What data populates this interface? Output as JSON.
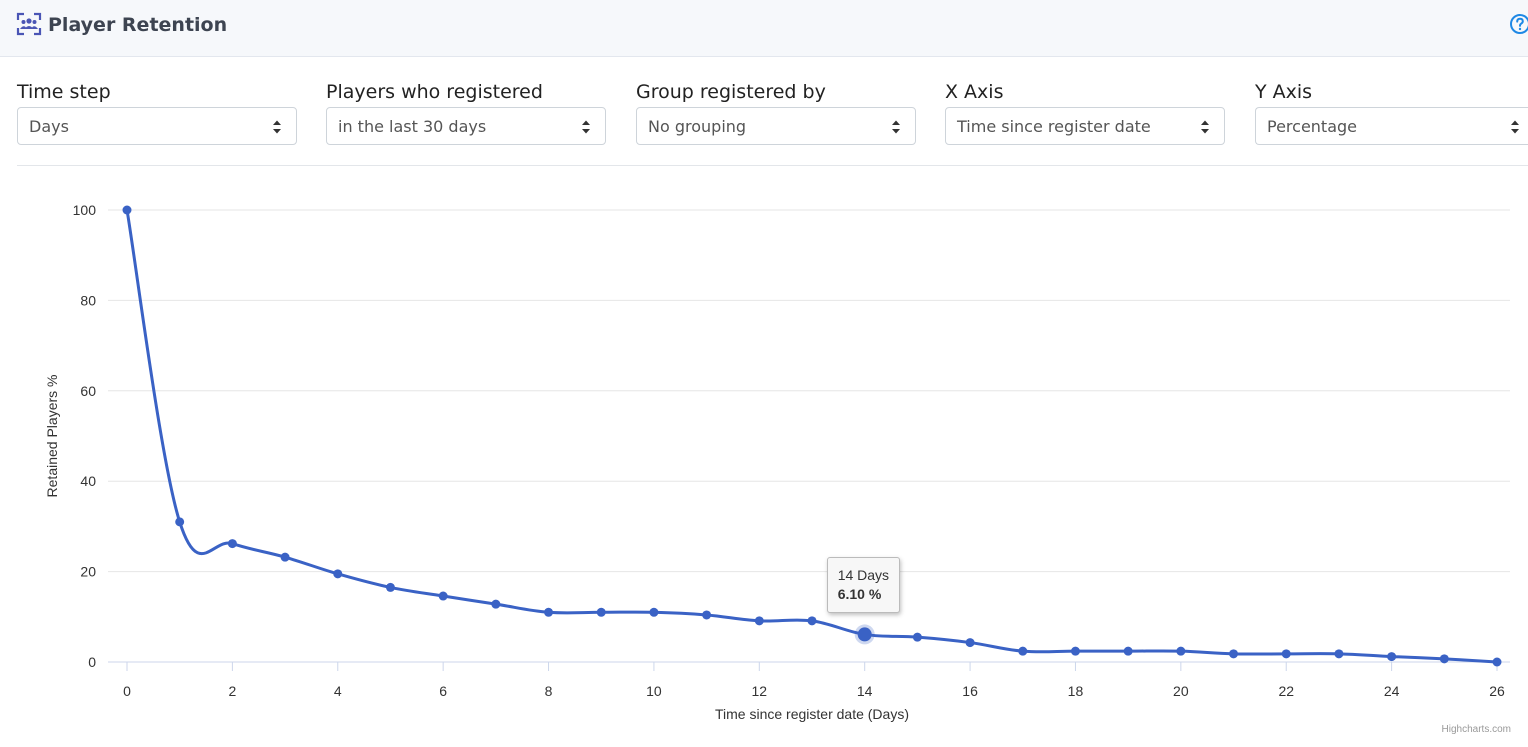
{
  "header": {
    "title": "Player Retention",
    "title_icon": "users-icon",
    "help_icon": "question-circle-icon"
  },
  "filters": [
    {
      "label": "Time step",
      "value": "Days"
    },
    {
      "label": "Players who registered",
      "value": "in the last 30 days"
    },
    {
      "label": "Group registered by",
      "value": "No grouping"
    },
    {
      "label": "X Axis",
      "value": "Time since register date"
    },
    {
      "label": "Y Axis",
      "value": "Percentage"
    }
  ],
  "colors": {
    "series": "#3a62c5",
    "accent": "#1e88e5",
    "grid": "#e6e6e6"
  },
  "chart_data": {
    "type": "line",
    "xlabel": "Time since register date (Days)",
    "ylabel": "Retained Players %",
    "xlim": [
      0,
      26
    ],
    "ylim": [
      0,
      100
    ],
    "x_ticks": [
      0,
      2,
      4,
      6,
      8,
      10,
      12,
      14,
      16,
      18,
      20,
      22,
      24,
      26
    ],
    "y_ticks": [
      0,
      20,
      40,
      60,
      80,
      100
    ],
    "grid": true,
    "series": [
      {
        "x": [
          0,
          1,
          2,
          3,
          4,
          5,
          6,
          7,
          8,
          9,
          10,
          11,
          12,
          13,
          14,
          15,
          16,
          17,
          18,
          19,
          20,
          21,
          22,
          23,
          24,
          25,
          26
        ],
        "values": [
          100,
          31,
          26.2,
          23.2,
          19.5,
          16.5,
          14.6,
          12.8,
          11,
          11,
          11,
          10.4,
          9.1,
          9.1,
          6.1,
          5.5,
          4.3,
          2.4,
          2.4,
          2.4,
          2.4,
          1.8,
          1.8,
          1.8,
          1.2,
          0.7,
          0
        ]
      }
    ],
    "tooltip": {
      "x": 14,
      "title": "14 Days",
      "value_text": "6.10 %"
    },
    "credits": "Highcharts.com"
  }
}
